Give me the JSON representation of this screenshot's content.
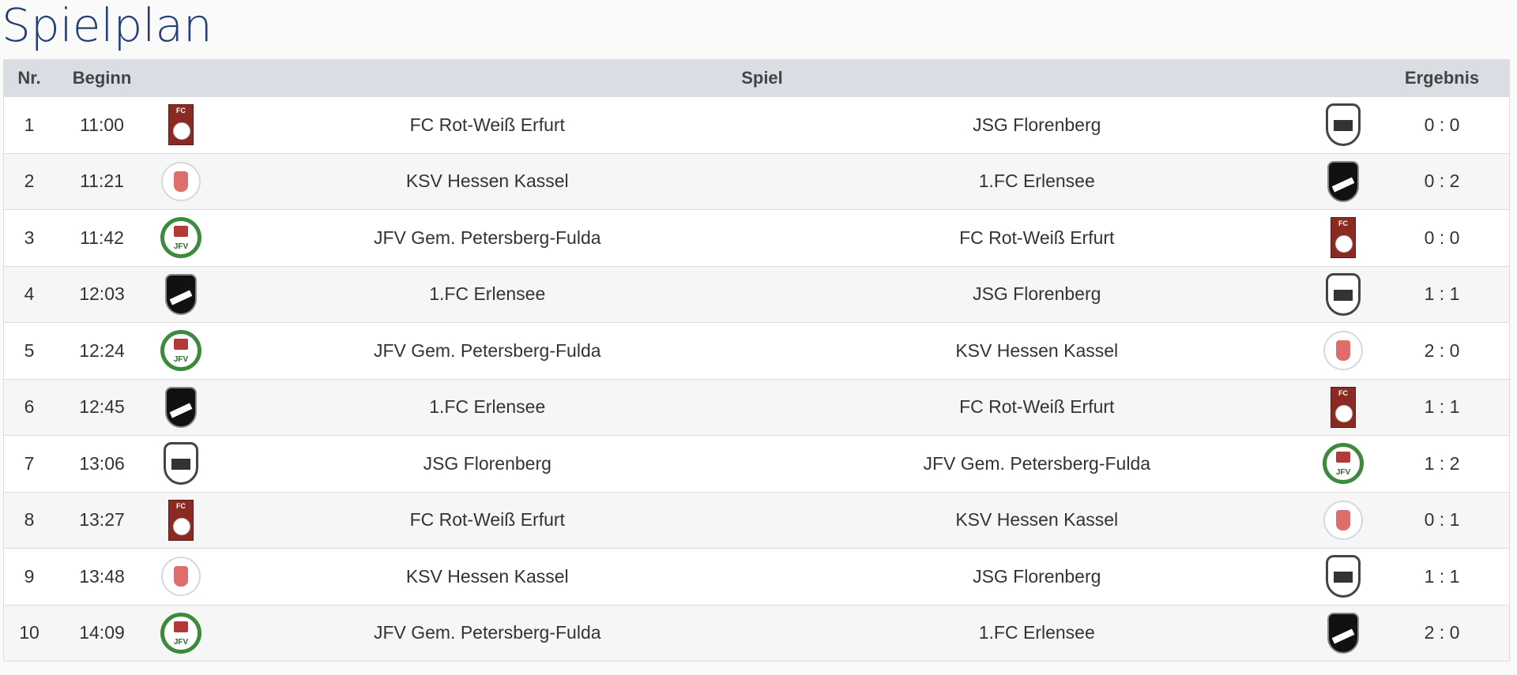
{
  "title": "Spielplan",
  "columns": {
    "nr": "Nr.",
    "begin": "Beginn",
    "game": "Spiel",
    "result": "Ergebnis"
  },
  "matches": [
    {
      "nr": "1",
      "time": "11:00",
      "home": "FC Rot-Weiß Erfurt",
      "home_logo": "rwe",
      "away": "JSG Florenberg",
      "away_logo": "flo",
      "result": "0 : 0"
    },
    {
      "nr": "2",
      "time": "11:21",
      "home": "KSV Hessen Kassel",
      "home_logo": "ksv",
      "away": "1.FC Erlensee",
      "away_logo": "erl",
      "result": "0 : 2"
    },
    {
      "nr": "3",
      "time": "11:42",
      "home": "JFV Gem. Petersberg-Fulda",
      "home_logo": "jfv",
      "away": "FC Rot-Weiß Erfurt",
      "away_logo": "rwe",
      "result": "0 : 0"
    },
    {
      "nr": "4",
      "time": "12:03",
      "home": "1.FC Erlensee",
      "home_logo": "erl",
      "away": "JSG Florenberg",
      "away_logo": "flo",
      "result": "1 : 1"
    },
    {
      "nr": "5",
      "time": "12:24",
      "home": "JFV Gem. Petersberg-Fulda",
      "home_logo": "jfv",
      "away": "KSV Hessen Kassel",
      "away_logo": "ksv",
      "result": "2 : 0"
    },
    {
      "nr": "6",
      "time": "12:45",
      "home": "1.FC Erlensee",
      "home_logo": "erl",
      "away": "FC Rot-Weiß Erfurt",
      "away_logo": "rwe",
      "result": "1 : 1"
    },
    {
      "nr": "7",
      "time": "13:06",
      "home": "JSG Florenberg",
      "home_logo": "flo",
      "away": "JFV Gem. Petersberg-Fulda",
      "away_logo": "jfv",
      "result": "1 : 2"
    },
    {
      "nr": "8",
      "time": "13:27",
      "home": "FC Rot-Weiß Erfurt",
      "home_logo": "rwe",
      "away": "KSV Hessen Kassel",
      "away_logo": "ksv",
      "result": "0 : 1"
    },
    {
      "nr": "9",
      "time": "13:48",
      "home": "KSV Hessen Kassel",
      "home_logo": "ksv",
      "away": "JSG Florenberg",
      "away_logo": "flo",
      "result": "1 : 1"
    },
    {
      "nr": "10",
      "time": "14:09",
      "home": "JFV Gem. Petersberg-Fulda",
      "home_logo": "jfv",
      "away": "1.FC Erlensee",
      "away_logo": "erl",
      "result": "2 : 0"
    }
  ],
  "colors": {
    "title": "#243f73",
    "header_bg": "#dadee4"
  }
}
